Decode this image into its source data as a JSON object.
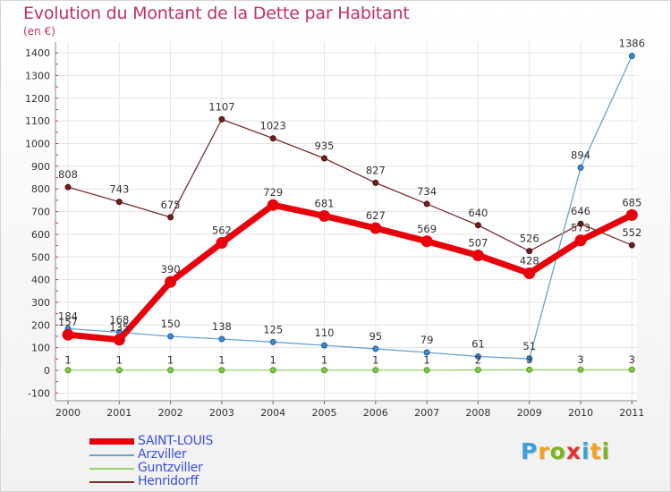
{
  "title": "Evolution du Montant de la Dette par Habitant",
  "subtitle": "(en €)",
  "logo": {
    "text": "Proxiti",
    "letter_colors": [
      "#3aa0d8",
      "#f3a21e",
      "#7ab51e",
      "#e63030",
      "#3aa0d8",
      "#f3a21e",
      "#7ab51e"
    ]
  },
  "chart_data": {
    "type": "line",
    "x": [
      "2000",
      "2001",
      "2002",
      "2003",
      "2004",
      "2005",
      "2006",
      "2007",
      "2008",
      "2009",
      "2010",
      "2011"
    ],
    "ylim": [
      -100,
      1400
    ],
    "yticks": [
      "-100",
      "0",
      "100",
      "200",
      "300",
      "400",
      "500",
      "600",
      "700",
      "800",
      "900",
      "1000",
      "1100",
      "1200",
      "1300",
      "1400"
    ],
    "grid": true,
    "legend": "bottom-left",
    "series": [
      {
        "name": "SAINT-LOUIS",
        "color": "#e8000b",
        "values": [
          157,
          135,
          390,
          562,
          729,
          681,
          627,
          569,
          507,
          428,
          573,
          685
        ],
        "labels": [
          "157",
          "135",
          "390",
          "562",
          "729",
          "681",
          "627",
          "569",
          "507",
          "428",
          "573",
          "685"
        ]
      },
      {
        "name": "Arzviller",
        "color": "#6aa2cf",
        "values": [
          184,
          168,
          150,
          138,
          125,
          110,
          95,
          79,
          61,
          51,
          894,
          1386
        ],
        "labels": [
          "184",
          "168",
          "150",
          "138",
          "125",
          "110",
          "95",
          "79",
          "61",
          "51",
          "894",
          "1386"
        ]
      },
      {
        "name": "Guntzviller",
        "color": "#99d36a",
        "values": [
          1,
          1,
          1,
          1,
          1,
          1,
          1,
          1,
          2,
          3,
          3,
          3
        ],
        "labels": [
          "1",
          "1",
          "1",
          "1",
          "1",
          "1",
          "1",
          "1",
          "2",
          "3",
          "3",
          "3"
        ]
      },
      {
        "name": "Henridorff",
        "color": "#7a2a2a",
        "values": [
          808,
          743,
          675,
          1107,
          1023,
          935,
          827,
          734,
          640,
          526,
          646,
          552
        ],
        "labels": [
          "808",
          "743",
          "675",
          "1107",
          "1023",
          "935",
          "827",
          "734",
          "640",
          "526",
          "646",
          "552"
        ]
      }
    ]
  }
}
